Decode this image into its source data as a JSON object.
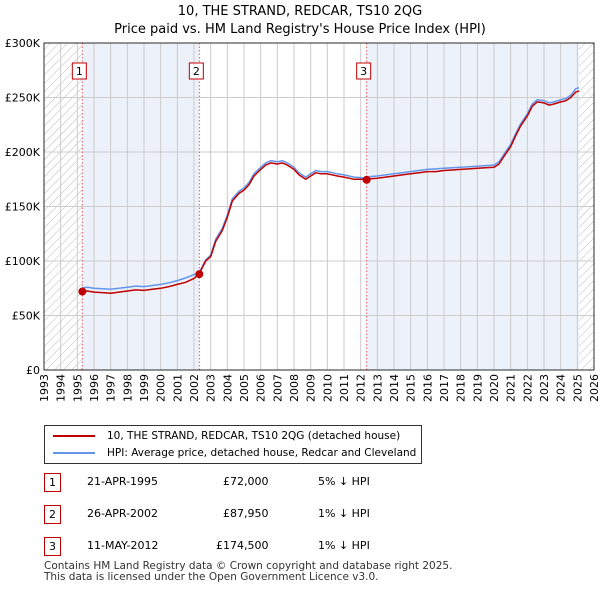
{
  "title": "10, THE STRAND, REDCAR, TS10 2QG",
  "subtitle": "Price paid vs. HM Land Registry's House Price Index (HPI)",
  "colors": {
    "price": "#c00000",
    "hpi": "#6495ed",
    "grid": "#cccccc",
    "marker": "#c00000"
  },
  "chart_data": {
    "type": "line",
    "title": "10, THE STRAND, REDCAR, TS10 2QG",
    "subtitle": "Price paid vs. HM Land Registry's House Price Index (HPI)",
    "xlabel": "",
    "ylabel": "",
    "xlim": [
      1993,
      2026
    ],
    "ylim": [
      0,
      300000
    ],
    "x_ticks": [
      1993,
      1994,
      1995,
      1996,
      1997,
      1998,
      1999,
      2000,
      2001,
      2002,
      2003,
      2004,
      2005,
      2006,
      2007,
      2008,
      2009,
      2010,
      2011,
      2012,
      2013,
      2014,
      2015,
      2016,
      2017,
      2018,
      2019,
      2020,
      2021,
      2022,
      2023,
      2024,
      2025,
      2026
    ],
    "y_ticks": [
      0,
      50000,
      100000,
      150000,
      200000,
      250000,
      300000
    ],
    "y_tick_labels": [
      "£0",
      "£50K",
      "£100K",
      "£150K",
      "£200K",
      "£250K",
      "£300K"
    ],
    "hatched_regions": [
      [
        1993,
        1995.3
      ],
      [
        2025.1,
        2026
      ]
    ],
    "series": [
      {
        "name": "10, THE STRAND, REDCAR, TS10 2QG (detached house)",
        "color": "#c00000",
        "x": [
          1995.3,
          1995.6,
          1996,
          1996.5,
          1997,
          1997.5,
          1998,
          1998.5,
          1999,
          1999.5,
          2000,
          2000.5,
          2001,
          2001.5,
          2002,
          2002.3,
          2002.7,
          2003,
          2003.3,
          2003.7,
          2004,
          2004.3,
          2004.7,
          2005,
          2005.3,
          2005.6,
          2006,
          2006.3,
          2006.6,
          2007,
          2007.3,
          2007.6,
          2008,
          2008.3,
          2008.7,
          2009,
          2009.3,
          2009.6,
          2010,
          2010.3,
          2010.6,
          2011,
          2011.3,
          2011.6,
          2012,
          2012.36,
          2012.6,
          2013,
          2013.5,
          2014,
          2014.5,
          2015,
          2015.5,
          2016,
          2016.5,
          2017,
          2017.5,
          2018,
          2018.5,
          2019,
          2019.5,
          2020,
          2020.3,
          2020.6,
          2021,
          2021.3,
          2021.6,
          2022,
          2022.3,
          2022.6,
          2023,
          2023.3,
          2023.6,
          2024,
          2024.3,
          2024.6,
          2024.9,
          2025.1
        ],
        "values": [
          72000,
          72500,
          71500,
          71000,
          70500,
          71500,
          72500,
          73500,
          73000,
          74000,
          75000,
          76500,
          78500,
          80500,
          84000,
          87950,
          100000,
          104000,
          118000,
          128000,
          140000,
          155000,
          162000,
          165000,
          170000,
          178000,
          184000,
          188000,
          190000,
          189000,
          190000,
          188000,
          184000,
          179000,
          175000,
          178000,
          181000,
          180000,
          180000,
          179000,
          178000,
          177000,
          176000,
          175000,
          175000,
          174500,
          175500,
          176000,
          177000,
          178000,
          179000,
          180000,
          181000,
          182000,
          182000,
          183000,
          183500,
          184000,
          184500,
          185000,
          185500,
          186000,
          189000,
          196000,
          205000,
          215000,
          224000,
          233000,
          242000,
          246000,
          245000,
          243000,
          244000,
          246000,
          247000,
          250000,
          255000,
          256000
        ]
      },
      {
        "name": "HPI: Average price, detached house, Redcar and Cleveland",
        "color": "#6495ed",
        "x": [
          1995.3,
          1995.6,
          1996,
          1996.5,
          1997,
          1997.5,
          1998,
          1998.5,
          1999,
          1999.5,
          2000,
          2000.5,
          2001,
          2001.5,
          2002,
          2002.3,
          2002.7,
          2003,
          2003.3,
          2003.7,
          2004,
          2004.3,
          2004.7,
          2005,
          2005.3,
          2005.6,
          2006,
          2006.3,
          2006.6,
          2007,
          2007.3,
          2007.6,
          2008,
          2008.3,
          2008.7,
          2009,
          2009.3,
          2009.6,
          2010,
          2010.3,
          2010.6,
          2011,
          2011.3,
          2011.6,
          2012,
          2012.36,
          2012.6,
          2013,
          2013.5,
          2014,
          2014.5,
          2015,
          2015.5,
          2016,
          2016.5,
          2017,
          2017.5,
          2018,
          2018.5,
          2019,
          2019.5,
          2020,
          2020.3,
          2020.6,
          2021,
          2021.3,
          2021.6,
          2022,
          2022.3,
          2022.6,
          2023,
          2023.3,
          2023.6,
          2024,
          2024.3,
          2024.6,
          2024.9,
          2025.1
        ],
        "values": [
          75500,
          76000,
          75000,
          74500,
          74000,
          75000,
          76000,
          77000,
          76500,
          77500,
          78500,
          80000,
          82000,
          84500,
          87500,
          89000,
          101000,
          105500,
          120000,
          130000,
          142000,
          157000,
          164000,
          167000,
          172000,
          180000,
          186000,
          190000,
          192000,
          191000,
          192000,
          190000,
          186000,
          181000,
          177000,
          180000,
          183000,
          182000,
          182000,
          181000,
          180000,
          179000,
          178000,
          177000,
          176500,
          176000,
          177500,
          178000,
          179000,
          180000,
          181000,
          182000,
          183000,
          184000,
          184500,
          185000,
          185500,
          186000,
          186500,
          187000,
          187500,
          188000,
          191000,
          198000,
          207000,
          217000,
          226000,
          235000,
          244000,
          248000,
          247000,
          245000,
          246000,
          248000,
          249000,
          252000,
          258000,
          259000
        ]
      }
    ],
    "sales": [
      {
        "label": "1",
        "date": "21-APR-1995",
        "x": 1995.3,
        "price": 72000
      },
      {
        "label": "2",
        "date": "26-APR-2002",
        "x": 2002.32,
        "price": 87950
      },
      {
        "label": "3",
        "date": "11-MAY-2012",
        "x": 2012.36,
        "price": 174500
      }
    ]
  },
  "legend": {
    "price_label": "10, THE STRAND, REDCAR, TS10 2QG (detached house)",
    "hpi_label": "HPI: Average price, detached house, Redcar and Cleveland"
  },
  "transactions": [
    {
      "num": "1",
      "date": "21-APR-1995",
      "price": "£72,000",
      "hpi": "5% ↓ HPI"
    },
    {
      "num": "2",
      "date": "26-APR-2002",
      "price": "£87,950",
      "hpi": "1% ↓ HPI"
    },
    {
      "num": "3",
      "date": "11-MAY-2012",
      "price": "£174,500",
      "hpi": "1% ↓ HPI"
    }
  ],
  "footer": {
    "line1": "Contains HM Land Registry data © Crown copyright and database right 2025.",
    "line2": "This data is licensed under the Open Government Licence v3.0."
  }
}
